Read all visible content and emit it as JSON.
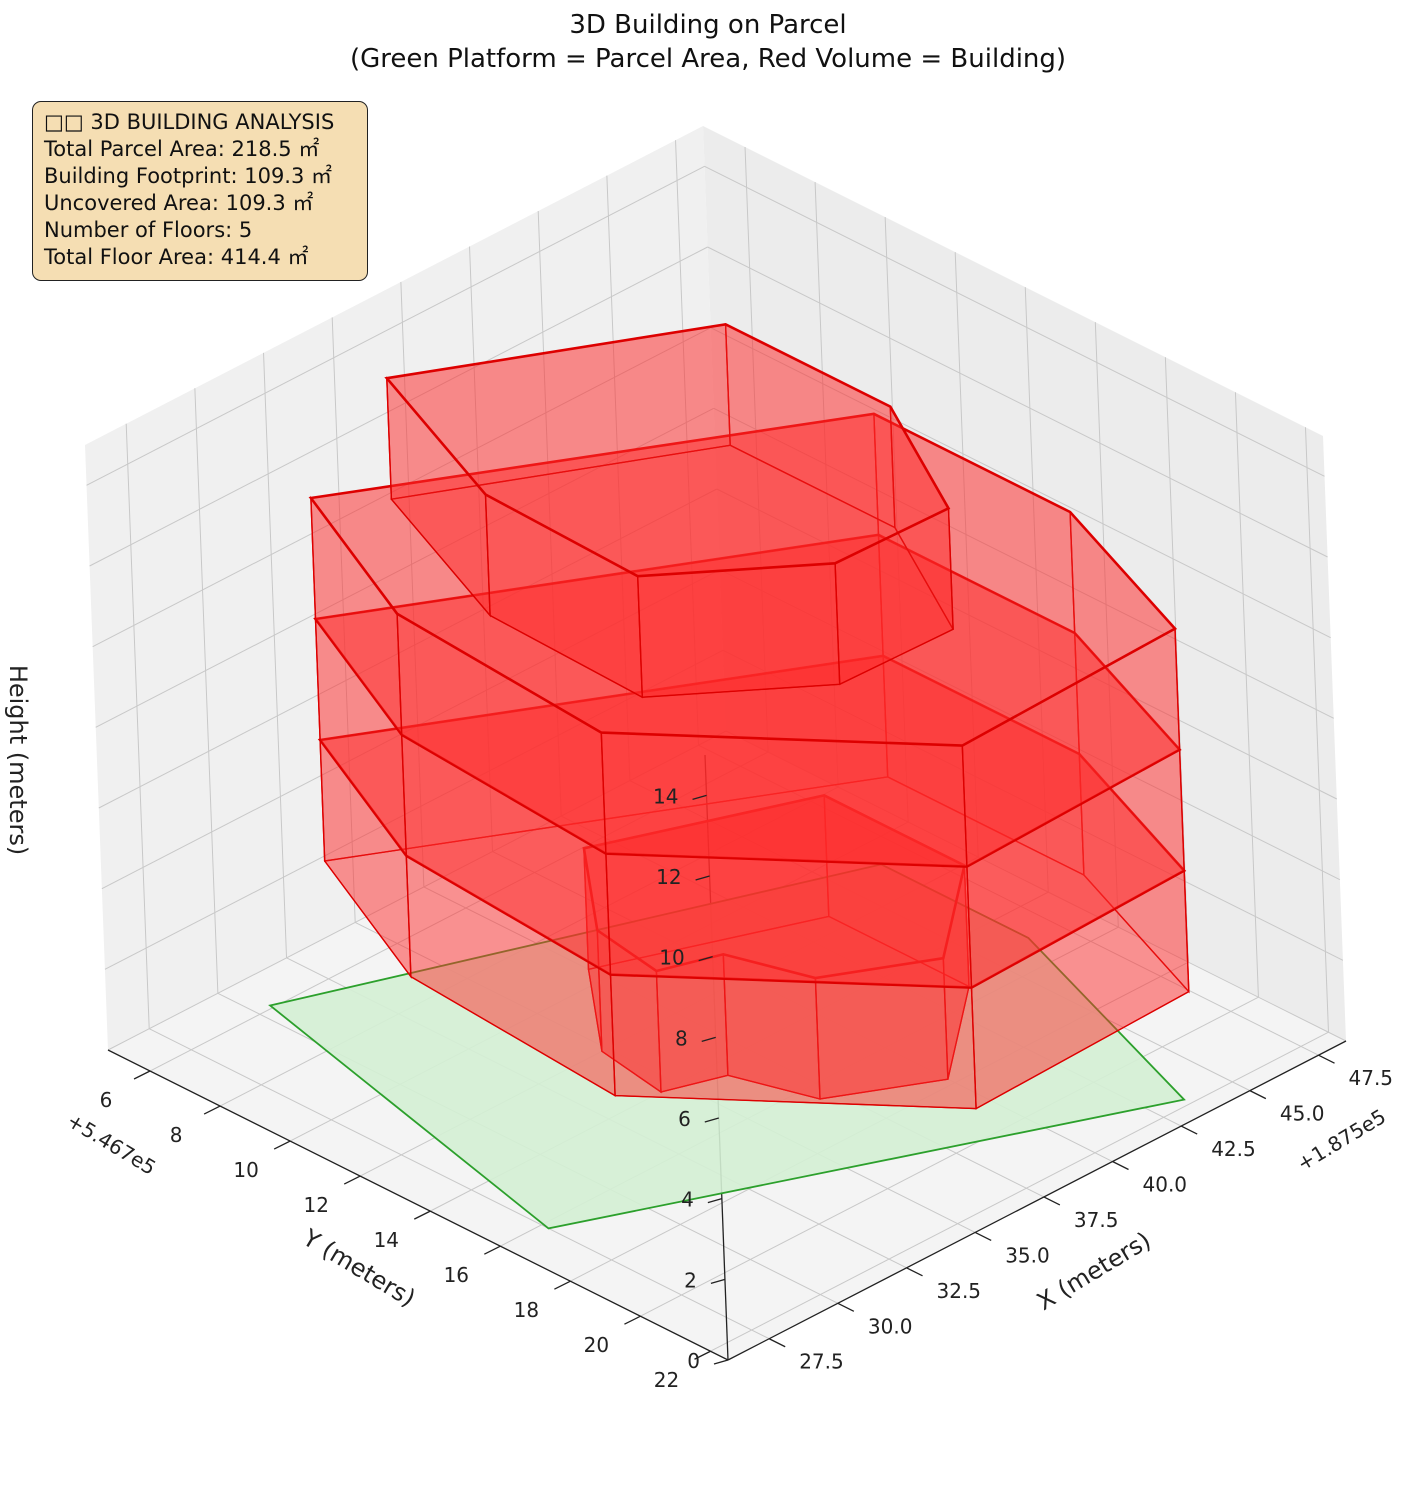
{
  "title_line1": "3D Building on Parcel",
  "title_line2": "(Green Platform = Parcel Area, Red Volume = Building)",
  "info_box": {
    "heading": "□□ 3D BUILDING ANALYSIS",
    "lines": [
      "Total Parcel Area: 218.5 ㎡",
      "Building Footprint: 109.3 ㎡",
      "Uncovered Area: 109.3 ㎡",
      "Number of Floors: 5",
      "Total Floor Area: 414.4 ㎡"
    ]
  },
  "colors": {
    "parcel_fill": "#d4f0d4",
    "parcel_edge": "#2ca02c",
    "building_fill": "#ff2a2a",
    "building_edge": "#dd0000",
    "pane": "#f0f0f0",
    "grid": "#c8c8c8"
  },
  "chart_data": {
    "type": "3d-surface",
    "xlabel": "X (meters)",
    "ylabel": "Y (meters)",
    "zlabel": "Height (meters)",
    "x_offset_label": "+1.875e5",
    "y_offset_label": "+5.467e5",
    "x_ticks": [
      "27.5",
      "30.0",
      "32.5",
      "35.0",
      "37.5",
      "40.0",
      "42.5",
      "45.0",
      "47.5"
    ],
    "y_ticks": [
      "6",
      "8",
      "10",
      "12",
      "14",
      "16",
      "18",
      "20",
      "22"
    ],
    "z_ticks": [
      "0",
      "2",
      "4",
      "6",
      "8",
      "10",
      "12",
      "14"
    ],
    "xlim": [
      26.0,
      48.5
    ],
    "ylim": [
      4.8,
      22.5
    ],
    "zlim": [
      0,
      15
    ],
    "grid": true,
    "series": [
      {
        "name": "Parcel Area",
        "kind": "platform",
        "z": 0,
        "outline": [
          [
            30.5,
            5.9
          ],
          [
            46.5,
            10.8
          ],
          [
            46.5,
            15.0
          ],
          [
            43.5,
            21.8
          ],
          [
            27.5,
            16.2
          ]
        ]
      },
      {
        "name": "Building",
        "kind": "floors",
        "floors": [
          {
            "z": [
              0,
              3
            ],
            "outline": [
              [
                37.5,
                9.5
              ],
              [
                43.7,
                11.5
              ],
              [
                43.7,
                15.5
              ],
              [
                40.0,
                17.8
              ],
              [
                37.0,
                16.5
              ],
              [
                36.2,
                14.5
              ],
              [
                34.4,
                14.0
              ],
              [
                34.8,
                12.0
              ]
            ]
          },
          {
            "z": [
              3,
              6
            ],
            "outline": [
              [
                32.4,
                6.1
              ],
              [
                45.5,
                11.9
              ],
              [
                45.5,
                17.5
              ],
              [
                43.2,
                22.3
              ],
              [
                35.2,
                22.5
              ],
              [
                29.2,
                16.9
              ],
              [
                29.8,
                10.6
              ]
            ]
          },
          {
            "z": [
              6,
              9
            ],
            "outline": [
              [
                32.4,
                6.1
              ],
              [
                45.5,
                11.9
              ],
              [
                45.5,
                17.5
              ],
              [
                43.2,
                22.3
              ],
              [
                35.2,
                22.5
              ],
              [
                29.2,
                16.9
              ],
              [
                29.8,
                10.6
              ]
            ]
          },
          {
            "z": [
              9,
              12
            ],
            "outline": [
              [
                32.4,
                6.1
              ],
              [
                45.5,
                11.9
              ],
              [
                45.5,
                17.5
              ],
              [
                43.2,
                22.3
              ],
              [
                35.2,
                22.5
              ],
              [
                29.2,
                16.9
              ],
              [
                29.8,
                10.6
              ]
            ]
          },
          {
            "z": [
              12,
              15
            ],
            "outline": [
              [
                33.8,
                7.3
              ],
              [
                41.8,
                10.7
              ],
              [
                41.8,
                15.4
              ],
              [
                39.2,
                19.1
              ],
              [
                35.2,
                19.0
              ],
              [
                31.2,
                16.5
              ],
              [
                31.4,
                12.0
              ]
            ]
          }
        ]
      }
    ]
  }
}
